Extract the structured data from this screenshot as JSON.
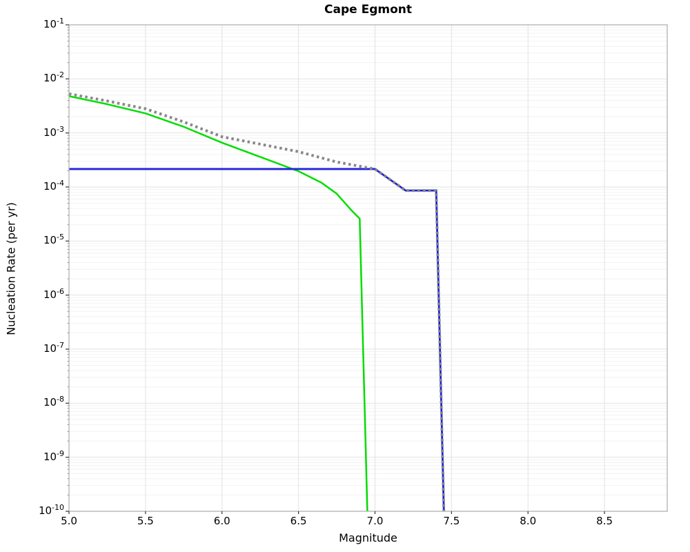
{
  "chart_data": {
    "type": "line",
    "title": "Cape Egmont",
    "xlabel": "Magnitude",
    "ylabel": "Nucleation Rate (per yr)",
    "xlim": [
      5.0,
      8.91
    ],
    "ylim": [
      1e-10,
      0.1
    ],
    "xticks": [
      5.0,
      5.5,
      6.0,
      6.5,
      7.0,
      7.5,
      8.0,
      8.5
    ],
    "xtick_labels": [
      "5.0",
      "5.5",
      "6.0",
      "6.5",
      "7.0",
      "7.5",
      "8.0",
      "8.5"
    ],
    "ytick_exponents": [
      -1,
      -2,
      -3,
      -4,
      -5,
      -6,
      -7,
      -8,
      -9,
      -10
    ],
    "ytick_base": "10",
    "grid": true,
    "legend": "none",
    "axis_scale": {
      "x": "linear",
      "y": "log"
    },
    "colors": {
      "grid_major": "#e2e2e2",
      "grid_minor": "#f2f2f2",
      "frame": "#ababab",
      "tick": "#333333",
      "green_line": "#00dd00",
      "blue_line": "#2222dd",
      "gray_dotted": "#888888"
    },
    "series": [
      {
        "name": "green-solid-curve",
        "color": "#00dd00",
        "style": "solid",
        "width": 2.5,
        "points": [
          [
            5.0,
            0.0048
          ],
          [
            5.25,
            0.0034
          ],
          [
            5.5,
            0.0023
          ],
          [
            5.75,
            0.0013
          ],
          [
            6.0,
            0.00066
          ],
          [
            6.25,
            0.00036
          ],
          [
            6.5,
            0.000196
          ],
          [
            6.65,
            0.00012
          ],
          [
            6.75,
            7.5e-05
          ],
          [
            6.85,
            3.6e-05
          ],
          [
            6.9,
            2.6e-05
          ],
          [
            6.95,
            1e-10
          ]
        ]
      },
      {
        "name": "blue-solid-curve",
        "color": "#2222dd",
        "style": "solid",
        "width": 2.8,
        "points": [
          [
            5.0,
            0.000215
          ],
          [
            7.0,
            0.000215
          ],
          [
            7.2,
            8.6e-05
          ],
          [
            7.4,
            8.6e-05
          ],
          [
            7.45,
            1e-10
          ]
        ]
      },
      {
        "name": "gray-dotted-curve",
        "color": "#888888",
        "style": "dotted",
        "width": 4,
        "points": [
          [
            5.0,
            0.0053
          ],
          [
            5.25,
            0.0039
          ],
          [
            5.5,
            0.0028
          ],
          [
            5.75,
            0.0016
          ],
          [
            6.0,
            0.00085
          ],
          [
            6.25,
            0.00062
          ],
          [
            6.5,
            0.00045
          ],
          [
            6.75,
            0.00029
          ],
          [
            7.0,
            0.000215
          ],
          [
            7.2,
            8.6e-05
          ],
          [
            7.4,
            8.6e-05
          ],
          [
            7.45,
            1e-10
          ]
        ]
      }
    ]
  }
}
